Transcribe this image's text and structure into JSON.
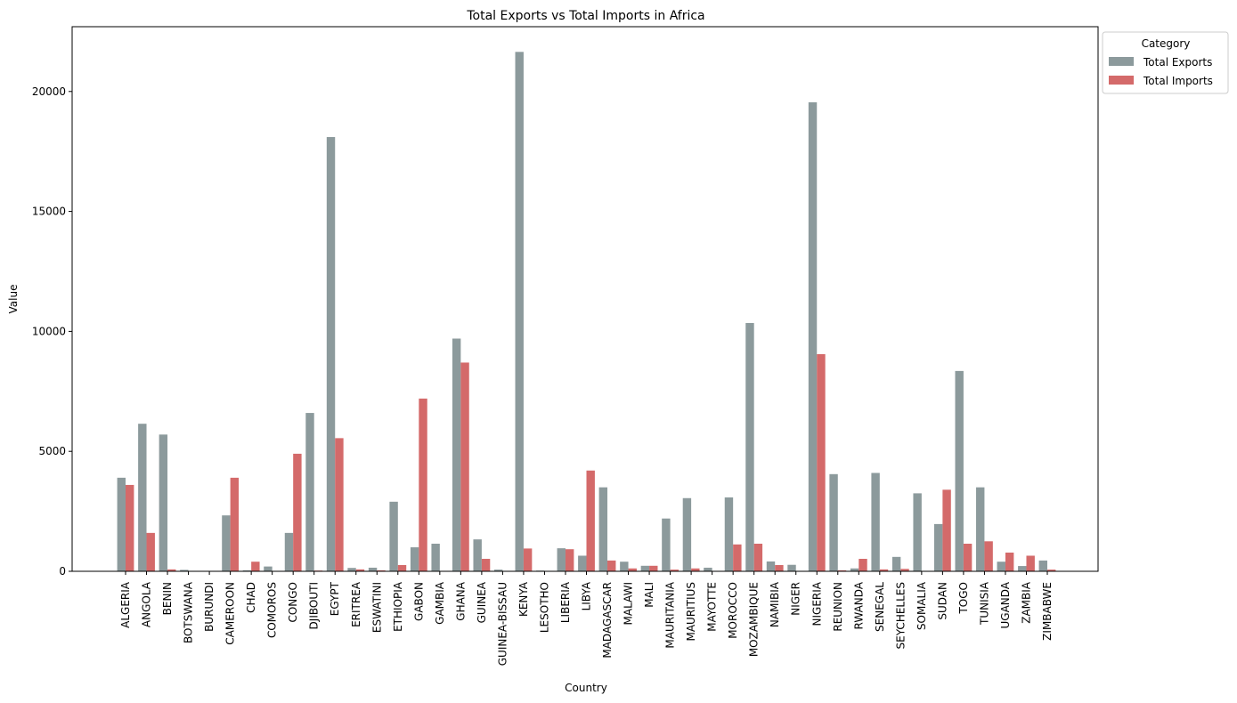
{
  "chart_data": {
    "type": "bar",
    "title": "Total Exports vs Total Imports in Africa",
    "xlabel": "Country",
    "ylabel": "Value",
    "ylim": [
      0,
      22700
    ],
    "yticks": [
      0,
      5000,
      10000,
      15000,
      20000
    ],
    "legend": {
      "title": "Category",
      "placement": "outside-top-right"
    },
    "categories": [
      "ALGERIA",
      "ANGOLA",
      "BENIN",
      "BOTSWANA",
      "BURUNDI",
      "CAMEROON",
      "CHAD",
      "COMOROS",
      "CONGO",
      "DJIBOUTI",
      "EGYPT",
      "ERITREA",
      "ESWATINI",
      "ETHIOPIA",
      "GABON",
      "GAMBIA",
      "GHANA",
      "GUINEA",
      "GUINEA-BISSAU",
      "KENYA",
      "LESOTHO",
      "LIBERIA",
      "LIBYA",
      "MADAGASCAR",
      "MALAWI",
      "MALI",
      "MAURITANIA",
      "MAURITIUS",
      "MAYOTTE",
      "MOROCCO",
      "MOZAMBIQUE",
      "NAMIBIA",
      "NIGER",
      "NIGERIA",
      "REUNION",
      "RWANDA",
      "SENEGAL",
      "SEYCHELLES",
      "SOMALIA",
      "SUDAN",
      "TOGO",
      "TUNISIA",
      "UGANDA",
      "ZAMBIA",
      "ZIMBABWE"
    ],
    "series": [
      {
        "name": "Total Exports",
        "color": "#8c9a9c",
        "values": [
          3900,
          6150,
          5700,
          60,
          10,
          2330,
          40,
          200,
          1600,
          6600,
          18100,
          140,
          150,
          2900,
          1000,
          1150,
          9700,
          1330,
          70,
          21650,
          30,
          960,
          650,
          3500,
          400,
          230,
          2200,
          3050,
          150,
          3080,
          10350,
          410,
          270,
          19550,
          4050,
          120,
          4100,
          600,
          3250,
          1970,
          8350,
          3500,
          400,
          220,
          450
        ]
      },
      {
        "name": "Total Imports",
        "color": "#d46a6a",
        "values": [
          3600,
          1600,
          80,
          0,
          0,
          3900,
          400,
          0,
          4900,
          30,
          5550,
          80,
          40,
          260,
          7200,
          0,
          8700,
          520,
          0,
          950,
          0,
          920,
          4200,
          450,
          120,
          230,
          70,
          120,
          0,
          1120,
          1150,
          260,
          0,
          9050,
          40,
          520,
          80,
          100,
          0,
          3400,
          1150,
          1250,
          780,
          650,
          70
        ]
      }
    ]
  }
}
